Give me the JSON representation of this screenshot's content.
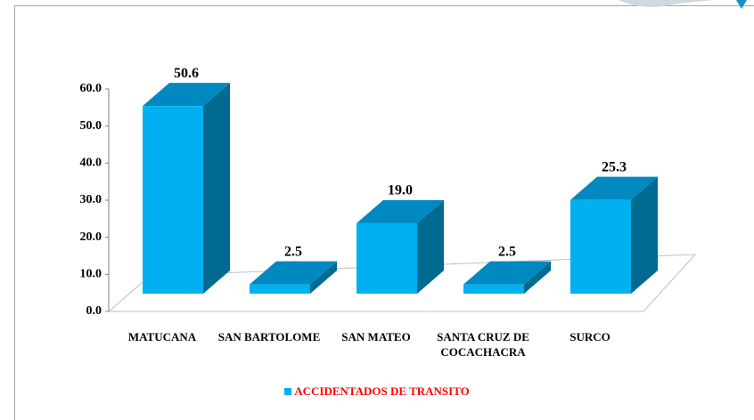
{
  "chart_data": {
    "type": "bar3d",
    "categories": [
      "MATUCANA",
      "SAN BARTOLOME",
      "SAN MATEO",
      "SANTA CRUZ DE COCACHACRA",
      "SURCO"
    ],
    "series": [
      {
        "name": "ACCIDENTADOS DE TRANSITO",
        "color": "#00b0f0",
        "label_color": "#ff0000",
        "values": [
          50.6,
          2.5,
          19.0,
          2.5,
          25.3
        ],
        "value_labels": [
          "50.6",
          "2.5",
          "19.0",
          "2.5",
          "25.3"
        ]
      }
    ],
    "ylim": [
      0,
      60
    ],
    "yticks": [
      {
        "value": 0,
        "label": "0.0"
      },
      {
        "value": 10,
        "label": "10.0"
      },
      {
        "value": 20,
        "label": "20.0"
      },
      {
        "value": 30,
        "label": "30.0"
      },
      {
        "value": 40,
        "label": "40.0"
      },
      {
        "value": 50,
        "label": "50.0"
      },
      {
        "value": 60,
        "label": "60.0"
      }
    ],
    "legend": "bottom"
  }
}
